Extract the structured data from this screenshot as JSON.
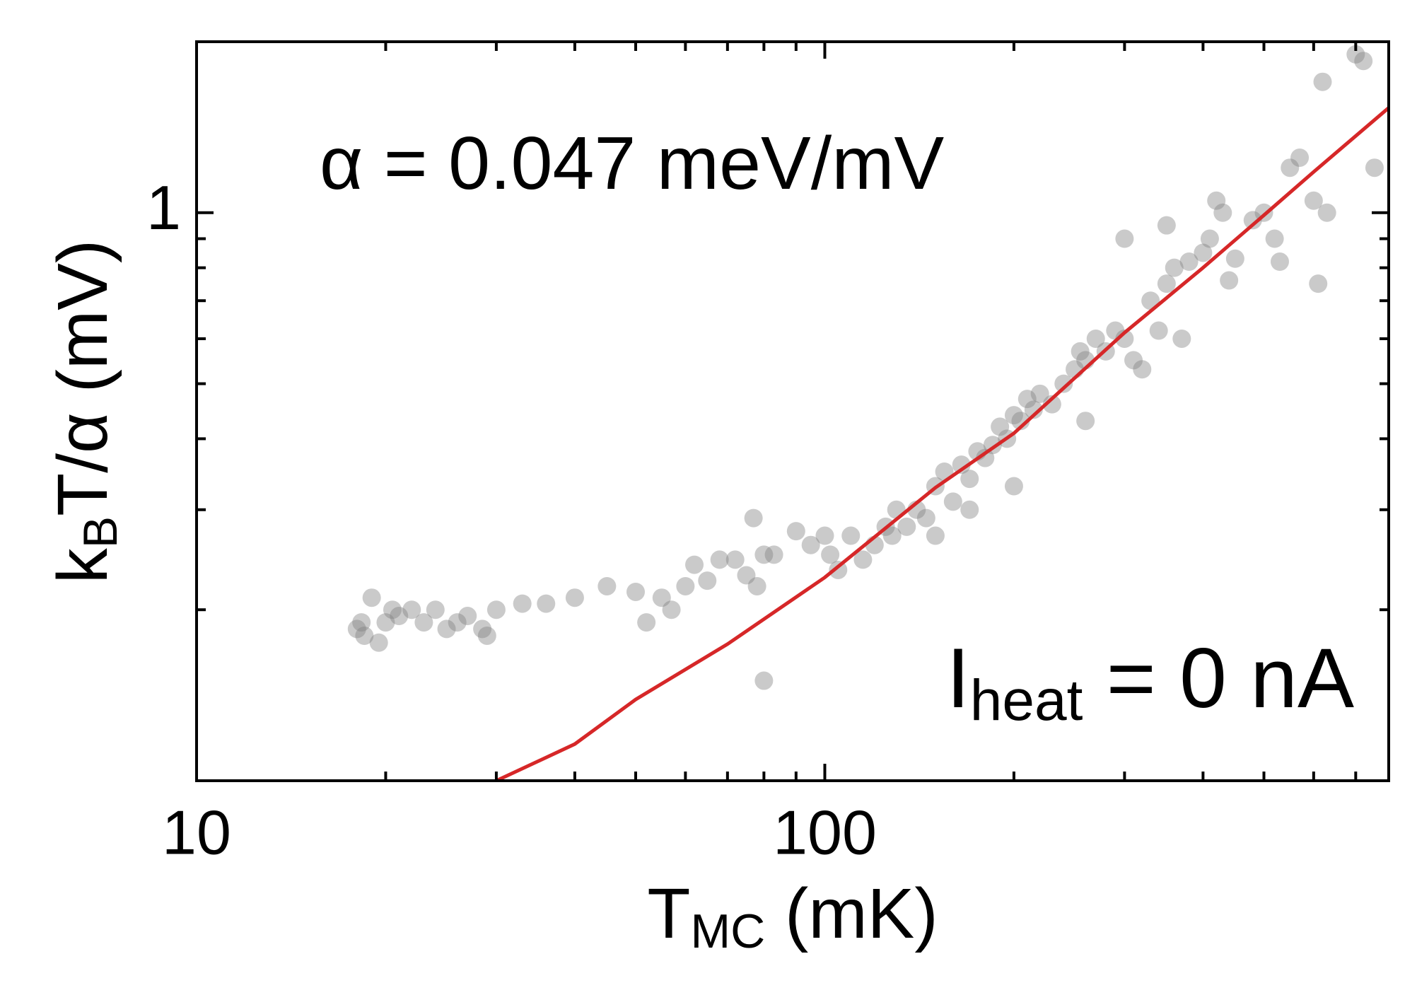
{
  "chart_data": {
    "type": "scatter",
    "xlabel": {
      "main": "T",
      "sub": "MC",
      "rest": " (mK)"
    },
    "ylabel": {
      "main": "k",
      "sub": "B",
      "rest": "T/α (mV)"
    },
    "annotations": [
      {
        "main": "α = 0.047 meV/mV"
      },
      {
        "main": "I",
        "sub": "heat",
        "rest": " = 0 nA"
      }
    ],
    "xscale": "log",
    "yscale": "log",
    "xlim": [
      10,
      790
    ],
    "ylim": [
      0.1,
      2.0
    ],
    "xticks": [
      10,
      100
    ],
    "yticks": [
      1
    ],
    "xminorticks": [
      20,
      30,
      40,
      50,
      60,
      70,
      80,
      90,
      200,
      300,
      400,
      500,
      600,
      700
    ],
    "yminorticks": [
      0.2,
      0.3,
      0.4,
      0.5,
      0.6,
      0.7,
      0.8,
      0.9,
      2
    ],
    "series": [
      {
        "type": "scatter",
        "color": "#808080",
        "x": [
          18,
          18.3,
          18.5,
          19,
          19.5,
          20,
          20.5,
          21,
          22,
          23,
          24,
          25,
          26,
          27,
          28.5,
          29,
          30,
          33,
          36,
          40,
          45,
          50,
          52,
          55,
          57,
          60,
          62,
          65,
          68,
          72,
          75,
          77,
          78,
          80,
          83,
          90,
          95,
          100,
          102,
          105,
          110,
          115,
          120,
          125,
          128,
          130,
          135,
          140,
          145,
          150,
          155,
          160,
          165,
          170,
          175,
          180,
          185,
          190,
          195,
          200,
          205,
          210,
          215,
          220,
          230,
          240,
          250,
          255,
          260,
          270,
          280,
          290,
          300,
          310,
          320,
          330,
          340,
          350,
          360,
          370,
          380,
          400,
          410,
          420,
          440,
          450,
          480,
          500,
          520,
          530,
          550,
          570,
          600,
          610,
          620,
          630,
          700,
          720,
          750,
          80,
          200,
          150,
          260,
          170,
          430,
          350,
          300
        ],
        "y": [
          0.185,
          0.19,
          0.18,
          0.21,
          0.175,
          0.19,
          0.2,
          0.195,
          0.2,
          0.19,
          0.2,
          0.185,
          0.19,
          0.195,
          0.185,
          0.18,
          0.2,
          0.205,
          0.205,
          0.21,
          0.22,
          0.215,
          0.19,
          0.21,
          0.2,
          0.22,
          0.24,
          0.225,
          0.245,
          0.245,
          0.23,
          0.29,
          0.22,
          0.25,
          0.25,
          0.275,
          0.26,
          0.27,
          0.25,
          0.235,
          0.27,
          0.245,
          0.26,
          0.28,
          0.27,
          0.3,
          0.28,
          0.3,
          0.29,
          0.33,
          0.35,
          0.31,
          0.36,
          0.34,
          0.38,
          0.37,
          0.39,
          0.42,
          0.4,
          0.44,
          0.43,
          0.47,
          0.45,
          0.48,
          0.46,
          0.5,
          0.53,
          0.57,
          0.55,
          0.6,
          0.57,
          0.62,
          0.6,
          0.55,
          0.53,
          0.7,
          0.62,
          0.75,
          0.8,
          0.6,
          0.82,
          0.85,
          0.9,
          1.05,
          0.76,
          0.83,
          0.97,
          1.0,
          0.9,
          0.82,
          1.2,
          1.25,
          1.05,
          0.75,
          1.7,
          1.0,
          1.9,
          1.85,
          1.2,
          0.15,
          0.33,
          0.27,
          0.43,
          0.3,
          1.0,
          0.95,
          0.9
        ]
      },
      {
        "type": "line",
        "color": "#d62728",
        "x": [
          30,
          40,
          50,
          70,
          100,
          150,
          200,
          300,
          400,
          500,
          600,
          790
        ],
        "y": [
          0.1,
          0.116,
          0.139,
          0.174,
          0.228,
          0.328,
          0.409,
          0.615,
          0.8,
          0.99,
          1.18,
          1.53
        ]
      }
    ]
  }
}
